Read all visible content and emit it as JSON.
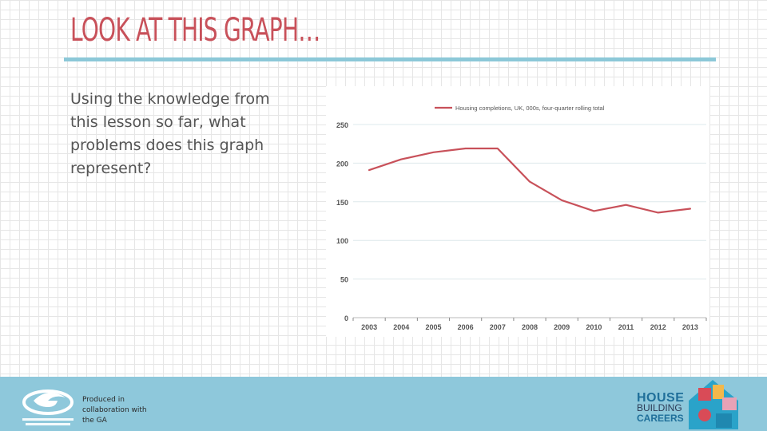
{
  "slide": {
    "title": "LOOK AT THIS GRAPH…",
    "question": "Using the knowledge from this lesson so far, what problems does this graph represent?"
  },
  "chart_data": {
    "type": "line",
    "title": "",
    "xlabel": "",
    "ylabel": "",
    "x": [
      "2003",
      "2004",
      "2005",
      "2006",
      "2007",
      "2008",
      "2009",
      "2010",
      "2011",
      "2012",
      "2013"
    ],
    "yticks": [
      0,
      50,
      100,
      150,
      200,
      250
    ],
    "ylim": [
      0,
      250
    ],
    "grid": true,
    "legend_position": "top",
    "series": [
      {
        "name": "Housing completions, UK, 000s, four-quarter rolling total",
        "color": "#c8515a",
        "points": [
          {
            "x": "2003",
            "y": 191
          },
          {
            "x": "2003.5",
            "y": 198
          },
          {
            "x": "2004",
            "y": 205
          },
          {
            "x": "2005",
            "y": 214
          },
          {
            "x": "2006",
            "y": 219
          },
          {
            "x": "2007",
            "y": 219
          },
          {
            "x": "2008",
            "y": 176
          },
          {
            "x": "2009",
            "y": 152
          },
          {
            "x": "2010",
            "y": 138
          },
          {
            "x": "2011",
            "y": 146
          },
          {
            "x": "2012",
            "y": 136
          },
          {
            "x": "2013",
            "y": 141
          }
        ]
      }
    ]
  },
  "footer": {
    "produced_by": "Produced in collaboration with the GA",
    "logo_left_name": "Geographical Association",
    "logo_right": {
      "line1": "HOUSE",
      "line2": "BUILDING",
      "line3": "CAREERS"
    }
  },
  "colors": {
    "title": "#c8515a",
    "rule": "#8cc8d8",
    "footer": "#8ec8db",
    "series": "#c8515a"
  }
}
